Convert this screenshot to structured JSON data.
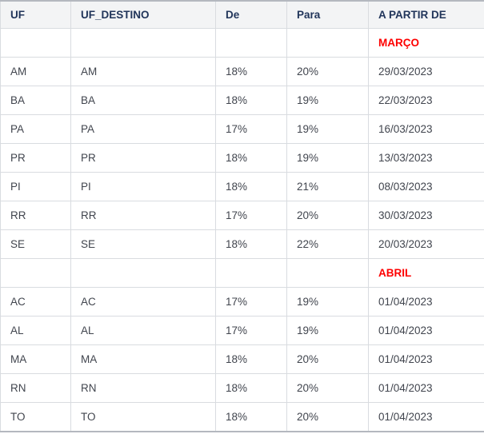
{
  "colors": {
    "header_text": "#21355a",
    "body_text": "#41454e",
    "section_text": "#fe0000",
    "grid_line": "#d9dce0",
    "outer_line": "#b4b8bf",
    "header_bg": "#f3f4f5"
  },
  "chart_data": {
    "type": "table",
    "columns": [
      "UF",
      "UF_DESTINO",
      "De",
      "Para",
      "A PARTIR DE"
    ],
    "column_keys": [
      "uf",
      "uf-destino",
      "de",
      "para",
      "a-partir-de"
    ],
    "sections": [
      {
        "label": "MARÇO",
        "rows": [
          [
            "AM",
            "AM",
            "18%",
            "20%",
            "29/03/2023"
          ],
          [
            "BA",
            "BA",
            "18%",
            "19%",
            "22/03/2023"
          ],
          [
            "PA",
            "PA",
            "17%",
            "19%",
            "16/03/2023"
          ],
          [
            "PR",
            "PR",
            "18%",
            "19%",
            "13/03/2023"
          ],
          [
            "PI",
            "PI",
            "18%",
            "21%",
            "08/03/2023"
          ],
          [
            "RR",
            "RR",
            "17%",
            "20%",
            "30/03/2023"
          ],
          [
            "SE",
            "SE",
            "18%",
            "22%",
            "20/03/2023"
          ]
        ]
      },
      {
        "label": "ABRIL",
        "rows": [
          [
            "AC",
            "AC",
            "17%",
            "19%",
            "01/04/2023"
          ],
          [
            "AL",
            "AL",
            "17%",
            "19%",
            "01/04/2023"
          ],
          [
            "MA",
            "MA",
            "18%",
            "20%",
            "01/04/2023"
          ],
          [
            "RN",
            "RN",
            "18%",
            "20%",
            "01/04/2023"
          ],
          [
            "TO",
            "TO",
            "18%",
            "20%",
            "01/04/2023"
          ]
        ]
      }
    ]
  }
}
